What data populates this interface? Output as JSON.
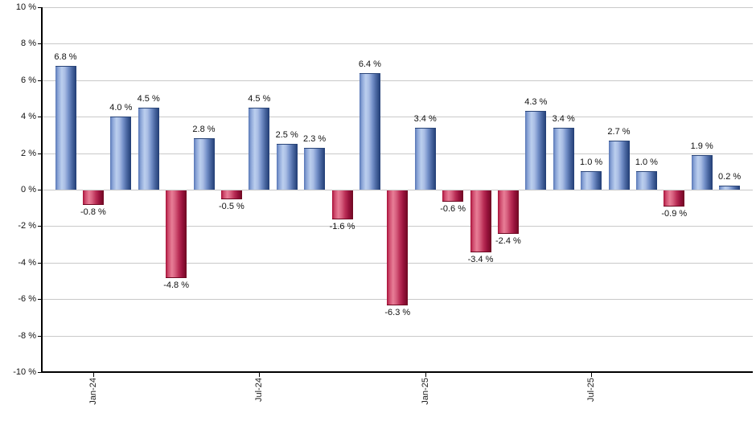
{
  "chart_data": {
    "type": "bar",
    "title": "",
    "xlabel": "",
    "ylabel": "",
    "ylim": [
      -10,
      10
    ],
    "y_tick_step": 2,
    "grid": true,
    "legend": "none",
    "bar_count": 25,
    "values": [
      6.8,
      -0.8,
      4.0,
      4.5,
      -4.8,
      2.8,
      -0.5,
      4.5,
      2.5,
      2.3,
      -1.6,
      6.4,
      -6.3,
      3.4,
      -0.6,
      -3.4,
      -2.4,
      4.3,
      3.4,
      1.0,
      2.7,
      1.0,
      -0.9,
      1.9,
      0.2
    ],
    "bar_value_labels": [
      "6.8 %",
      "-0.8 %",
      "4.0 %",
      "4.5 %",
      "-4.8 %",
      "2.8 %",
      "-0.5 %",
      "4.5 %",
      "2.5 %",
      "2.3 %",
      "-1.6 %",
      "6.4 %",
      "-6.3 %",
      "3.4 %",
      "-0.6 %",
      "-3.4 %",
      "-2.4 %",
      "4.3 %",
      "3.4 %",
      "1.0 %",
      "2.7 %",
      "1.0 %",
      "-0.9 %",
      "1.9 %",
      "0.2 %"
    ],
    "y_tick_labels": [
      "10 %",
      "8 %",
      "6 %",
      "4 %",
      "2 %",
      "0 %",
      "-2 %",
      "-4 %",
      "-6 %",
      "-8 %",
      "-10 %"
    ],
    "x_ticks": [
      {
        "label": "Jan-24",
        "bar_index": 1
      },
      {
        "label": "Jul-24",
        "bar_index": 7
      },
      {
        "label": "Jan-25",
        "bar_index": 13
      },
      {
        "label": "Jul-25",
        "bar_index": 19
      }
    ],
    "colors": {
      "positive_edge": "#5877b6",
      "positive_light": "#bccfee",
      "positive_dark": "#203c74",
      "negative_edge": "#a81038",
      "negative_light": "#e87e97",
      "negative_dark": "#6e0822",
      "gridline": "#c9c9c9",
      "axis": "#000000",
      "label_text": "#111111"
    }
  }
}
